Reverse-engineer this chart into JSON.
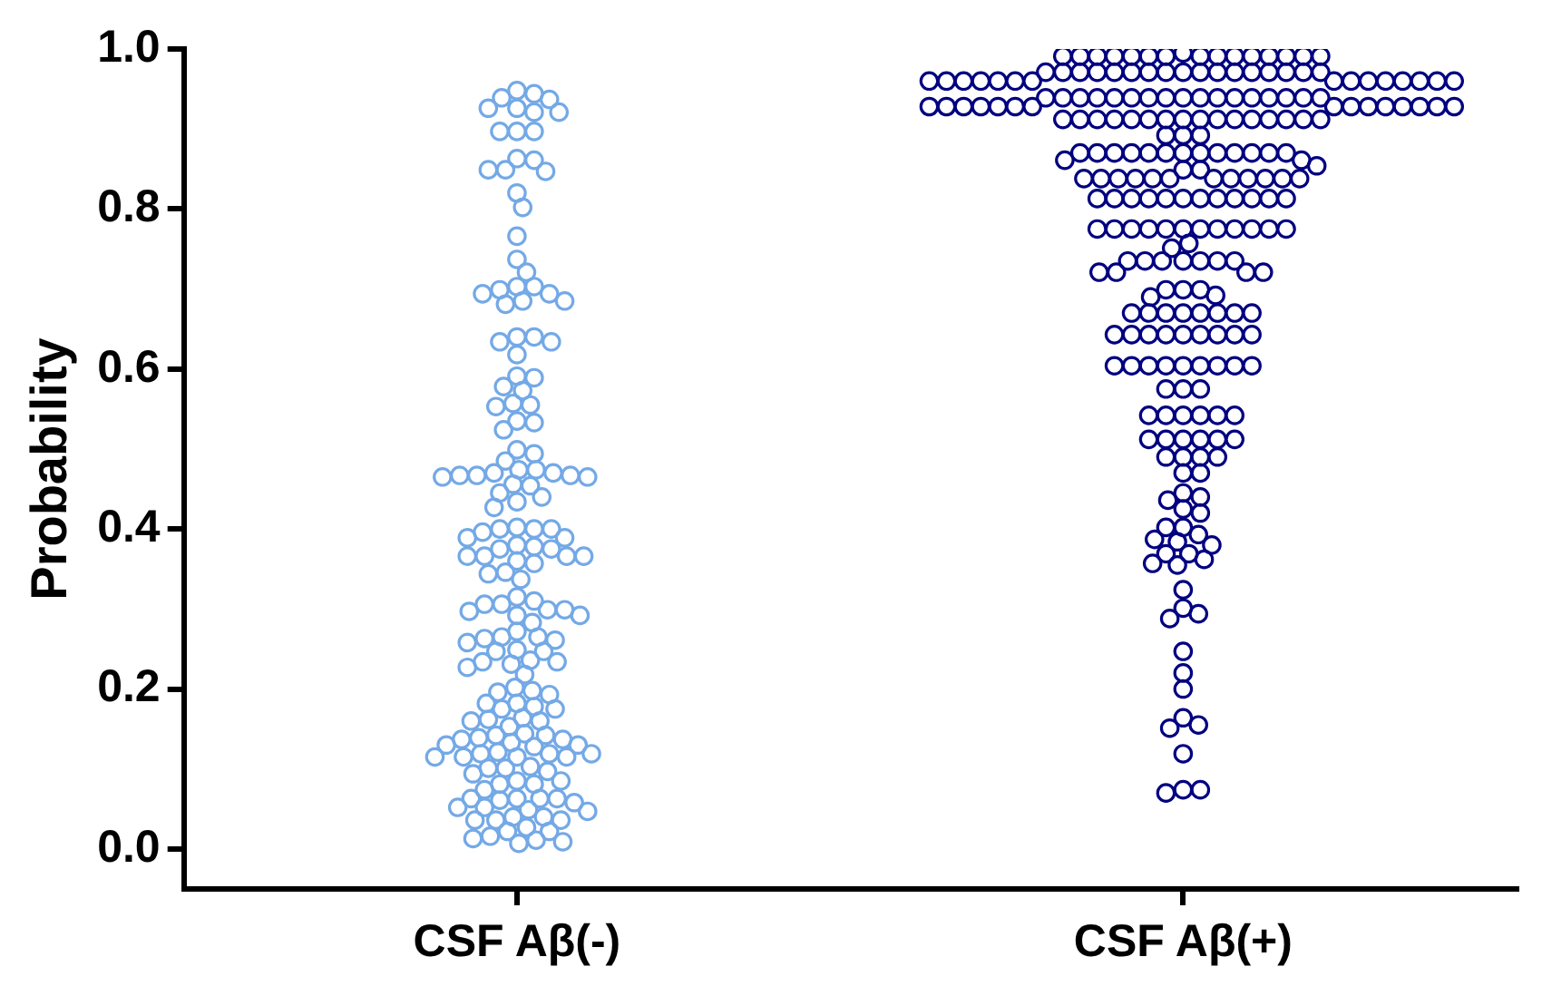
{
  "chart_data": {
    "type": "scatter",
    "ylabel": "Probability",
    "categories": [
      "CSF Aβ(-)",
      "CSF Aβ(+)"
    ],
    "ylim": [
      -0.05,
      1.0
    ],
    "yticks": [
      {
        "value": 0,
        "label": "0.0"
      },
      {
        "value": 0.2,
        "label": "0.2"
      },
      {
        "value": 0.4,
        "label": "0.4"
      },
      {
        "value": 0.6,
        "label": "0.6"
      },
      {
        "value": 0.8,
        "label": "0.8"
      },
      {
        "value": 1,
        "label": "1.0"
      }
    ],
    "marker": "circle",
    "legend": false,
    "series": [
      {
        "color": "#74a9e6",
        "x": [
          "CSF Aβ(-)",
          "CSF Aβ(-)",
          "CSF Aβ(-)",
          "CSF Aβ(-)",
          "CSF Aβ(-)",
          "CSF Aβ(-)",
          "CSF Aβ(-)",
          "CSF Aβ(-)",
          "CSF Aβ(-)",
          "CSF Aβ(-)",
          "CSF Aβ(-)",
          "CSF Aβ(-)",
          "CSF Aβ(-)",
          "CSF Aβ(-)",
          "CSF Aβ(-)",
          "CSF Aβ(-)",
          "CSF Aβ(-)",
          "CSF Aβ(-)",
          "CSF Aβ(-)",
          "CSF Aβ(-)",
          "CSF Aβ(-)",
          "CSF Aβ(-)",
          "CSF Aβ(-)",
          "CSF Aβ(-)",
          "CSF Aβ(-)",
          "CSF Aβ(-)",
          "CSF Aβ(-)",
          "CSF Aβ(-)",
          "CSF Aβ(-)",
          "CSF Aβ(-)",
          "CSF Aβ(-)",
          "CSF Aβ(-)",
          "CSF Aβ(-)",
          "CSF Aβ(-)",
          "CSF Aβ(-)",
          "CSF Aβ(-)",
          "CSF Aβ(-)",
          "CSF Aβ(-)",
          "CSF Aβ(-)",
          "CSF Aβ(-)",
          "CSF Aβ(-)",
          "CSF Aβ(-)",
          "CSF Aβ(-)",
          "CSF Aβ(-)",
          "CSF Aβ(-)",
          "CSF Aβ(-)",
          "CSF Aβ(-)",
          "CSF Aβ(-)",
          "CSF Aβ(-)",
          "CSF Aβ(-)",
          "CSF Aβ(-)",
          "CSF Aβ(-)",
          "CSF Aβ(-)",
          "CSF Aβ(-)",
          "CSF Aβ(-)",
          "CSF Aβ(-)",
          "CSF Aβ(-)",
          "CSF Aβ(-)",
          "CSF Aβ(-)",
          "CSF Aβ(-)",
          "CSF Aβ(-)",
          "CSF Aβ(-)",
          "CSF Aβ(-)",
          "CSF Aβ(-)",
          "CSF Aβ(-)",
          "CSF Aβ(-)",
          "CSF Aβ(-)",
          "CSF Aβ(-)",
          "CSF Aβ(-)",
          "CSF Aβ(-)",
          "CSF Aβ(-)",
          "CSF Aβ(-)",
          "CSF Aβ(-)",
          "CSF Aβ(-)",
          "CSF Aβ(-)",
          "CSF Aβ(-)",
          "CSF Aβ(-)",
          "CSF Aβ(-)",
          "CSF Aβ(-)",
          "CSF Aβ(-)",
          "CSF Aβ(-)",
          "CSF Aβ(-)",
          "CSF Aβ(-)",
          "CSF Aβ(-)",
          "CSF Aβ(-)",
          "CSF Aβ(-)",
          "CSF Aβ(-)",
          "CSF Aβ(-)",
          "CSF Aβ(-)",
          "CSF Aβ(-)",
          "CSF Aβ(-)",
          "CSF Aβ(-)",
          "CSF Aβ(-)",
          "CSF Aβ(-)",
          "CSF Aβ(-)",
          "CSF Aβ(-)",
          "CSF Aβ(-)",
          "CSF Aβ(-)",
          "CSF Aβ(-)",
          "CSF Aβ(-)",
          "CSF Aβ(-)",
          "CSF Aβ(-)",
          "CSF Aβ(-)",
          "CSF Aβ(-)",
          "CSF Aβ(-)",
          "CSF Aβ(-)",
          "CSF Aβ(-)",
          "CSF Aβ(-)",
          "CSF Aβ(-)",
          "CSF Aβ(-)",
          "CSF Aβ(-)",
          "CSF Aβ(-)",
          "CSF Aβ(-)",
          "CSF Aβ(-)",
          "CSF Aβ(-)",
          "CSF Aβ(-)",
          "CSF Aβ(-)",
          "CSF Aβ(-)",
          "CSF Aβ(-)",
          "CSF Aβ(-)",
          "CSF Aβ(-)",
          "CSF Aβ(-)",
          "CSF Aβ(-)",
          "CSF Aβ(-)",
          "CSF Aβ(-)",
          "CSF Aβ(-)",
          "CSF Aβ(-)",
          "CSF Aβ(-)",
          "CSF Aβ(-)",
          "CSF Aβ(-)",
          "CSF Aβ(-)",
          "CSF Aβ(-)",
          "CSF Aβ(-)",
          "CSF Aβ(-)",
          "CSF Aβ(-)",
          "CSF Aβ(-)",
          "CSF Aβ(-)",
          "CSF Aβ(-)",
          "CSF Aβ(-)",
          "CSF Aβ(-)",
          "CSF Aβ(-)",
          "CSF Aβ(-)",
          "CSF Aβ(-)",
          "CSF Aβ(-)",
          "CSF Aβ(-)",
          "CSF Aβ(-)",
          "CSF Aβ(-)",
          "CSF Aβ(-)",
          "CSF Aβ(-)",
          "CSF Aβ(-)",
          "CSF Aβ(-)",
          "CSF Aβ(-)",
          "CSF Aβ(-)",
          "CSF Aβ(-)",
          "CSF Aβ(-)",
          "CSF Aβ(-)",
          "CSF Aβ(-)",
          "CSF Aβ(-)",
          "CSF Aβ(-)",
          "CSF Aβ(-)",
          "CSF Aβ(-)",
          "CSF Aβ(-)",
          "CSF Aβ(-)",
          "CSF Aβ(-)",
          "CSF Aβ(-)",
          "CSF Aβ(-)",
          "CSF Aβ(-)",
          "CSF Aβ(-)",
          "CSF Aβ(-)",
          "CSF Aβ(-)",
          "CSF Aβ(-)",
          "CSF Aβ(-)"
        ],
        "values": [
          0.926,
          0.921,
          0.948,
          0.939,
          0.937,
          0.944,
          0.921,
          0.926,
          0.897,
          0.897,
          0.897,
          0.861,
          0.849,
          0.847,
          0.849,
          0.863,
          0.82,
          0.802,
          0.766,
          0.737,
          0.721,
          0.703,
          0.699,
          0.694,
          0.685,
          0.681,
          0.685,
          0.694,
          0.703,
          0.64,
          0.634,
          0.618,
          0.634,
          0.64,
          0.591,
          0.578,
          0.573,
          0.589,
          0.557,
          0.553,
          0.524,
          0.533,
          0.535,
          0.555,
          0.499,
          0.494,
          0.485,
          0.474,
          0.47,
          0.456,
          0.467,
          0.445,
          0.467,
          0.434,
          0.465,
          0.427,
          0.465,
          0.44,
          0.467,
          0.454,
          0.47,
          0.474,
          0.4,
          0.4,
          0.396,
          0.389,
          0.378,
          0.375,
          0.375,
          0.38,
          0.389,
          0.4,
          0.402,
          0.366,
          0.366,
          0.357,
          0.344,
          0.337,
          0.346,
          0.36,
          0.366,
          0.366,
          0.315,
          0.306,
          0.299,
          0.297,
          0.292,
          0.292,
          0.299,
          0.306,
          0.31,
          0.283,
          0.272,
          0.265,
          0.261,
          0.258,
          0.263,
          0.265,
          0.249,
          0.247,
          0.234,
          0.231,
          0.218,
          0.227,
          0.234,
          0.236,
          0.247,
          0.198,
          0.193,
          0.182,
          0.178,
          0.182,
          0.196,
          0.202,
          0.175,
          0.162,
          0.16,
          0.144,
          0.153,
          0.16,
          0.164,
          0.175,
          0.142,
          0.137,
          0.13,
          0.13,
          0.121,
          0.119,
          0.115,
          0.115,
          0.115,
          0.115,
          0.119,
          0.119,
          0.128,
          0.133,
          0.137,
          0.139,
          0.142,
          0.101,
          0.097,
          0.085,
          0.081,
          0.074,
          0.081,
          0.085,
          0.094,
          0.101,
          0.103,
          0.063,
          0.063,
          0.061,
          0.052,
          0.049,
          0.04,
          0.04,
          0.047,
          0.052,
          0.058,
          0.063,
          0.063,
          0.036,
          0.036,
          0.022,
          0.016,
          0.011,
          0.007,
          0.009,
          0.013,
          0.022,
          0.027,
          0.036
        ]
      },
      {
        "color": "#000080",
        "x": [
          "CSF Aβ(+)",
          "CSF Aβ(+)",
          "CSF Aβ(+)",
          "CSF Aβ(+)",
          "CSF Aβ(+)",
          "CSF Aβ(+)",
          "CSF Aβ(+)",
          "CSF Aβ(+)",
          "CSF Aβ(+)",
          "CSF Aβ(+)",
          "CSF Aβ(+)",
          "CSF Aβ(+)",
          "CSF Aβ(+)",
          "CSF Aβ(+)",
          "CSF Aβ(+)",
          "CSF Aβ(+)",
          "CSF Aβ(+)",
          "CSF Aβ(+)",
          "CSF Aβ(+)",
          "CSF Aβ(+)",
          "CSF Aβ(+)",
          "CSF Aβ(+)",
          "CSF Aβ(+)",
          "CSF Aβ(+)",
          "CSF Aβ(+)",
          "CSF Aβ(+)",
          "CSF Aβ(+)",
          "CSF Aβ(+)",
          "CSF Aβ(+)",
          "CSF Aβ(+)",
          "CSF Aβ(+)",
          "CSF Aβ(+)",
          "CSF Aβ(+)",
          "CSF Aβ(+)",
          "CSF Aβ(+)",
          "CSF Aβ(+)",
          "CSF Aβ(+)",
          "CSF Aβ(+)",
          "CSF Aβ(+)",
          "CSF Aβ(+)",
          "CSF Aβ(+)",
          "CSF Aβ(+)",
          "CSF Aβ(+)",
          "CSF Aβ(+)",
          "CSF Aβ(+)",
          "CSF Aβ(+)",
          "CSF Aβ(+)",
          "CSF Aβ(+)",
          "CSF Aβ(+)",
          "CSF Aβ(+)",
          "CSF Aβ(+)",
          "CSF Aβ(+)",
          "CSF Aβ(+)",
          "CSF Aβ(+)",
          "CSF Aβ(+)",
          "CSF Aβ(+)",
          "CSF Aβ(+)",
          "CSF Aβ(+)",
          "CSF Aβ(+)",
          "CSF Aβ(+)",
          "CSF Aβ(+)",
          "CSF Aβ(+)",
          "CSF Aβ(+)",
          "CSF Aβ(+)",
          "CSF Aβ(+)",
          "CSF Aβ(+)",
          "CSF Aβ(+)",
          "CSF Aβ(+)",
          "CSF Aβ(+)",
          "CSF Aβ(+)",
          "CSF Aβ(+)",
          "CSF Aβ(+)",
          "CSF Aβ(+)",
          "CSF Aβ(+)",
          "CSF Aβ(+)",
          "CSF Aβ(+)",
          "CSF Aβ(+)",
          "CSF Aβ(+)",
          "CSF Aβ(+)",
          "CSF Aβ(+)",
          "CSF Aβ(+)",
          "CSF Aβ(+)",
          "CSF Aβ(+)",
          "CSF Aβ(+)",
          "CSF Aβ(+)",
          "CSF Aβ(+)",
          "CSF Aβ(+)",
          "CSF Aβ(+)",
          "CSF Aβ(+)",
          "CSF Aβ(+)",
          "CSF Aβ(+)",
          "CSF Aβ(+)",
          "CSF Aβ(+)",
          "CSF Aβ(+)",
          "CSF Aβ(+)",
          "CSF Aβ(+)",
          "CSF Aβ(+)",
          "CSF Aβ(+)",
          "CSF Aβ(+)",
          "CSF Aβ(+)",
          "CSF Aβ(+)",
          "CSF Aβ(+)",
          "CSF Aβ(+)",
          "CSF Aβ(+)",
          "CSF Aβ(+)",
          "CSF Aβ(+)",
          "CSF Aβ(+)",
          "CSF Aβ(+)",
          "CSF Aβ(+)",
          "CSF Aβ(+)",
          "CSF Aβ(+)",
          "CSF Aβ(+)",
          "CSF Aβ(+)",
          "CSF Aβ(+)",
          "CSF Aβ(+)",
          "CSF Aβ(+)",
          "CSF Aβ(+)",
          "CSF Aβ(+)",
          "CSF Aβ(+)",
          "CSF Aβ(+)",
          "CSF Aβ(+)",
          "CSF Aβ(+)",
          "CSF Aβ(+)",
          "CSF Aβ(+)",
          "CSF Aβ(+)",
          "CSF Aβ(+)",
          "CSF Aβ(+)",
          "CSF Aβ(+)",
          "CSF Aβ(+)",
          "CSF Aβ(+)",
          "CSF Aβ(+)",
          "CSF Aβ(+)",
          "CSF Aβ(+)",
          "CSF Aβ(+)",
          "CSF Aβ(+)",
          "CSF Aβ(+)",
          "CSF Aβ(+)",
          "CSF Aβ(+)",
          "CSF Aβ(+)",
          "CSF Aβ(+)",
          "CSF Aβ(+)",
          "CSF Aβ(+)",
          "CSF Aβ(+)",
          "CSF Aβ(+)",
          "CSF Aβ(+)",
          "CSF Aβ(+)",
          "CSF Aβ(+)",
          "CSF Aβ(+)",
          "CSF Aβ(+)",
          "CSF Aβ(+)",
          "CSF Aβ(+)",
          "CSF Aβ(+)",
          "CSF Aβ(+)",
          "CSF Aβ(+)",
          "CSF Aβ(+)",
          "CSF Aβ(+)",
          "CSF Aβ(+)",
          "CSF Aβ(+)",
          "CSF Aβ(+)",
          "CSF Aβ(+)",
          "CSF Aβ(+)",
          "CSF Aβ(+)",
          "CSF Aβ(+)",
          "CSF Aβ(+)",
          "CSF Aβ(+)",
          "CSF Aβ(+)",
          "CSF Aβ(+)",
          "CSF Aβ(+)",
          "CSF Aβ(+)",
          "CSF Aβ(+)",
          "CSF Aβ(+)",
          "CSF Aβ(+)",
          "CSF Aβ(+)",
          "CSF Aβ(+)",
          "CSF Aβ(+)",
          "CSF Aβ(+)",
          "CSF Aβ(+)",
          "CSF Aβ(+)",
          "CSF Aβ(+)",
          "CSF Aβ(+)",
          "CSF Aβ(+)",
          "CSF Aβ(+)",
          "CSF Aβ(+)",
          "CSF Aβ(+)",
          "CSF Aβ(+)",
          "CSF Aβ(+)",
          "CSF Aβ(+)",
          "CSF Aβ(+)",
          "CSF Aβ(+)",
          "CSF Aβ(+)",
          "CSF Aβ(+)",
          "CSF Aβ(+)",
          "CSF Aβ(+)",
          "CSF Aβ(+)",
          "CSF Aβ(+)",
          "CSF Aβ(+)",
          "CSF Aβ(+)",
          "CSF Aβ(+)",
          "CSF Aβ(+)",
          "CSF Aβ(+)",
          "CSF Aβ(+)",
          "CSF Aβ(+)",
          "CSF Aβ(+)",
          "CSF Aβ(+)",
          "CSF Aβ(+)",
          "CSF Aβ(+)",
          "CSF Aβ(+)",
          "CSF Aβ(+)",
          "CSF Aβ(+)",
          "CSF Aβ(+)",
          "CSF Aβ(+)",
          "CSF Aβ(+)",
          "CSF Aβ(+)",
          "CSF Aβ(+)",
          "CSF Aβ(+)",
          "CSF Aβ(+)",
          "CSF Aβ(+)",
          "CSF Aβ(+)",
          "CSF Aβ(+)",
          "CSF Aβ(+)",
          "CSF Aβ(+)",
          "CSF Aβ(+)",
          "CSF Aβ(+)",
          "CSF Aβ(+)",
          "CSF Aβ(+)",
          "CSF Aβ(+)",
          "CSF Aβ(+)",
          "CSF Aβ(+)",
          "CSF Aβ(+)",
          "CSF Aβ(+)",
          "CSF Aβ(+)",
          "CSF Aβ(+)",
          "CSF Aβ(+)",
          "CSF Aβ(+)",
          "CSF Aβ(+)",
          "CSF Aβ(+)",
          "CSF Aβ(+)",
          "CSF Aβ(+)",
          "CSF Aβ(+)",
          "CSF Aβ(+)",
          "CSF Aβ(+)",
          "CSF Aβ(+)",
          "CSF Aβ(+)",
          "CSF Aβ(+)",
          "CSF Aβ(+)",
          "CSF Aβ(+)",
          "CSF Aβ(+)",
          "CSF Aβ(+)"
        ],
        "values": [
          0.995,
          0.991,
          0.991,
          0.991,
          0.991,
          0.991,
          0.991,
          0.991,
          0.991,
          0.991,
          0.991,
          0.991,
          0.991,
          0.991,
          0.991,
          0.991,
          0.971,
          0.971,
          0.971,
          0.971,
          0.971,
          0.971,
          0.971,
          0.971,
          0.971,
          0.971,
          0.971,
          0.971,
          0.971,
          0.971,
          0.971,
          0.971,
          0.971,
          0.96,
          0.96,
          0.96,
          0.96,
          0.96,
          0.96,
          0.96,
          0.96,
          0.96,
          0.96,
          0.96,
          0.96,
          0.96,
          0.96,
          0.96,
          0.939,
          0.939,
          0.939,
          0.939,
          0.939,
          0.939,
          0.939,
          0.939,
          0.939,
          0.939,
          0.939,
          0.939,
          0.939,
          0.939,
          0.939,
          0.939,
          0.939,
          0.928,
          0.928,
          0.928,
          0.928,
          0.928,
          0.928,
          0.928,
          0.928,
          0.928,
          0.928,
          0.928,
          0.928,
          0.928,
          0.928,
          0.928,
          0.912,
          0.912,
          0.912,
          0.912,
          0.912,
          0.912,
          0.912,
          0.912,
          0.912,
          0.912,
          0.912,
          0.912,
          0.912,
          0.912,
          0.912,
          0.912,
          0.892,
          0.892,
          0.892,
          0.87,
          0.87,
          0.87,
          0.87,
          0.87,
          0.87,
          0.87,
          0.87,
          0.87,
          0.87,
          0.87,
          0.87,
          0.87,
          0.861,
          0.849,
          0.861,
          0.854,
          0.849,
          0.838,
          0.838,
          0.838,
          0.838,
          0.838,
          0.838,
          0.838,
          0.838,
          0.838,
          0.838,
          0.838,
          0.838,
          0.813,
          0.813,
          0.813,
          0.813,
          0.813,
          0.813,
          0.813,
          0.813,
          0.813,
          0.813,
          0.813,
          0.813,
          0.775,
          0.775,
          0.775,
          0.775,
          0.775,
          0.775,
          0.775,
          0.775,
          0.775,
          0.775,
          0.775,
          0.775,
          0.751,
          0.757,
          0.735,
          0.735,
          0.735,
          0.735,
          0.735,
          0.735,
          0.735,
          0.721,
          0.721,
          0.721,
          0.721,
          0.699,
          0.699,
          0.699,
          0.692,
          0.69,
          0.67,
          0.67,
          0.67,
          0.67,
          0.67,
          0.67,
          0.67,
          0.67,
          0.643,
          0.643,
          0.643,
          0.643,
          0.643,
          0.643,
          0.643,
          0.643,
          0.643,
          0.604,
          0.604,
          0.604,
          0.604,
          0.604,
          0.604,
          0.604,
          0.604,
          0.604,
          0.575,
          0.575,
          0.575,
          0.542,
          0.542,
          0.542,
          0.542,
          0.542,
          0.542,
          0.512,
          0.512,
          0.512,
          0.512,
          0.512,
          0.512,
          0.49,
          0.49,
          0.49,
          0.49,
          0.47,
          0.47,
          0.44,
          0.436,
          0.445,
          0.425,
          0.42,
          0.402,
          0.393,
          0.402,
          0.384,
          0.369,
          0.362,
          0.357,
          0.355,
          0.369,
          0.38,
          0.387,
          0.324,
          0.294,
          0.288,
          0.301,
          0.247,
          0.22,
          0.2,
          0.164,
          0.155,
          0.151,
          0.119,
          0.074,
          0.07,
          0.074
        ]
      }
    ]
  }
}
